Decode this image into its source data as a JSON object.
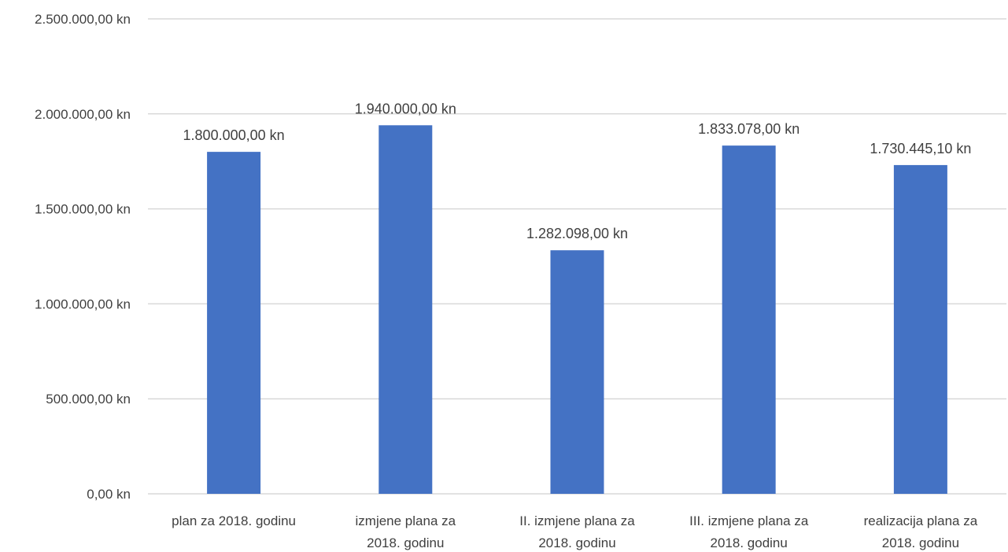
{
  "chart_data": {
    "type": "bar",
    "categories": [
      [
        "plan za 2018. godinu"
      ],
      [
        "izmjene plana za",
        "2018. godinu"
      ],
      [
        "II. izmjene plana za",
        "2018. godinu"
      ],
      [
        "III. izmjene plana za",
        "2018. godinu"
      ],
      [
        "realizacija plana za",
        "2018. godinu"
      ]
    ],
    "values": [
      1800000,
      1940000,
      1282098,
      1833078,
      1730445.1
    ],
    "data_labels": [
      "1.800.000,00 kn",
      "1.940.000,00 kn",
      "1.282.098,00 kn",
      "1.833.078,00 kn",
      "1.730.445,10 kn"
    ],
    "y_ticks": [
      0,
      500000,
      1000000,
      1500000,
      2000000,
      2500000
    ],
    "y_tick_labels": [
      "0,00 kn",
      "500.000,00 kn",
      "1.000.000,00 kn",
      "1.500.000,00 kn",
      "2.000.000,00 kn",
      "2.500.000,00 kn"
    ],
    "ylim": [
      0,
      2500000
    ],
    "grid": true,
    "bar_color": "#4472c4",
    "title": "",
    "xlabel": "",
    "ylabel": ""
  }
}
